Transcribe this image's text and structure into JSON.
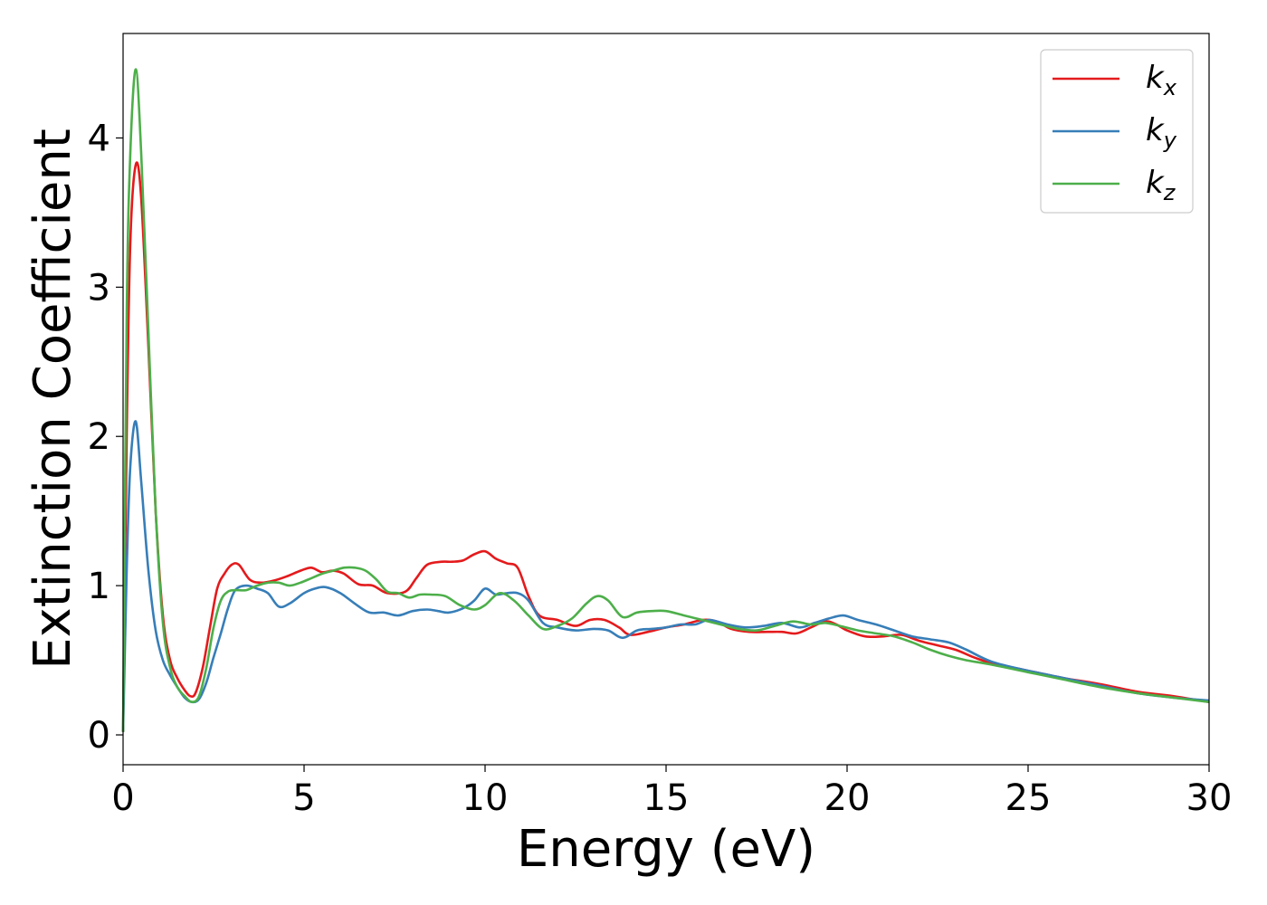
{
  "chart_data": {
    "type": "line",
    "xlabel": "Energy (eV)",
    "ylabel": "Extinction Coefficient",
    "xlim": [
      0,
      30
    ],
    "ylim": [
      -0.2,
      4.7
    ],
    "xticks": [
      "0",
      "5",
      "10",
      "15",
      "20",
      "25",
      "30"
    ],
    "yticks": [
      "0",
      "1",
      "2",
      "3",
      "4"
    ],
    "grid": false,
    "legend_position": "top-right",
    "series": [
      {
        "name": "k",
        "sub": "x",
        "color": "#e41a1c",
        "x": [
          0,
          0.1,
          0.2,
          0.35,
          0.5,
          0.7,
          0.9,
          1.1,
          1.3,
          1.5,
          1.7,
          1.85,
          2.0,
          2.2,
          2.4,
          2.6,
          2.8,
          3.0,
          3.2,
          3.5,
          3.8,
          4.1,
          4.5,
          4.9,
          5.2,
          5.5,
          5.8,
          6.1,
          6.5,
          6.9,
          7.3,
          7.8,
          8.1,
          8.4,
          8.8,
          9.1,
          9.4,
          9.7,
          10.0,
          10.3,
          10.6,
          10.9,
          11.2,
          11.5,
          12.0,
          12.5,
          12.9,
          13.3,
          13.7,
          14.0,
          14.5,
          15.0,
          15.5,
          16.0,
          16.4,
          16.8,
          17.3,
          17.8,
          18.2,
          18.6,
          19.0,
          19.4,
          19.7,
          20.0,
          20.5,
          21.0,
          21.5,
          22.0,
          22.5,
          23.0,
          23.5,
          24.0,
          25.0,
          26.0,
          27.0,
          28.0,
          29.0,
          30.0
        ],
        "y": [
          0.02,
          2.0,
          3.3,
          3.82,
          3.6,
          2.6,
          1.5,
          0.8,
          0.5,
          0.38,
          0.3,
          0.26,
          0.28,
          0.45,
          0.72,
          0.98,
          1.08,
          1.14,
          1.14,
          1.04,
          1.02,
          1.03,
          1.06,
          1.1,
          1.12,
          1.09,
          1.1,
          1.08,
          1.01,
          1.0,
          0.95,
          0.96,
          1.05,
          1.14,
          1.16,
          1.16,
          1.17,
          1.21,
          1.23,
          1.18,
          1.15,
          1.12,
          0.93,
          0.8,
          0.77,
          0.73,
          0.77,
          0.77,
          0.72,
          0.67,
          0.69,
          0.72,
          0.74,
          0.77,
          0.76,
          0.71,
          0.69,
          0.69,
          0.69,
          0.68,
          0.72,
          0.76,
          0.74,
          0.7,
          0.66,
          0.66,
          0.67,
          0.63,
          0.6,
          0.57,
          0.52,
          0.48,
          0.43,
          0.38,
          0.34,
          0.29,
          0.26,
          0.22
        ]
      },
      {
        "name": "k",
        "sub": "y",
        "color": "#377eb8",
        "x": [
          0,
          0.1,
          0.2,
          0.35,
          0.5,
          0.7,
          0.9,
          1.1,
          1.3,
          1.5,
          1.7,
          1.9,
          2.1,
          2.3,
          2.5,
          2.7,
          2.9,
          3.1,
          3.4,
          3.7,
          4.0,
          4.3,
          4.6,
          5.0,
          5.3,
          5.6,
          6.0,
          6.4,
          6.8,
          7.2,
          7.6,
          8.0,
          8.4,
          8.7,
          9.0,
          9.4,
          9.7,
          10.0,
          10.3,
          10.6,
          10.9,
          11.2,
          11.6,
          12.0,
          12.5,
          13.0,
          13.4,
          13.8,
          14.2,
          14.6,
          15.0,
          15.4,
          15.8,
          16.2,
          16.7,
          17.2,
          17.7,
          18.2,
          18.7,
          19.1,
          19.5,
          19.9,
          20.3,
          20.8,
          21.3,
          21.8,
          22.3,
          22.8,
          23.3,
          24.0,
          25.0,
          26.0,
          27.0,
          28.0,
          29.0,
          30.0
        ],
        "y": [
          0.02,
          1.1,
          1.8,
          2.1,
          1.7,
          1.1,
          0.7,
          0.5,
          0.4,
          0.32,
          0.25,
          0.22,
          0.24,
          0.35,
          0.52,
          0.68,
          0.85,
          0.97,
          1.0,
          0.98,
          0.95,
          0.86,
          0.88,
          0.95,
          0.98,
          0.99,
          0.95,
          0.88,
          0.82,
          0.82,
          0.8,
          0.83,
          0.84,
          0.83,
          0.82,
          0.85,
          0.9,
          0.98,
          0.94,
          0.95,
          0.95,
          0.9,
          0.75,
          0.72,
          0.7,
          0.71,
          0.7,
          0.65,
          0.7,
          0.71,
          0.72,
          0.74,
          0.74,
          0.77,
          0.74,
          0.72,
          0.73,
          0.75,
          0.72,
          0.75,
          0.78,
          0.8,
          0.77,
          0.74,
          0.7,
          0.66,
          0.64,
          0.62,
          0.57,
          0.49,
          0.43,
          0.38,
          0.33,
          0.28,
          0.25,
          0.23
        ]
      },
      {
        "name": "k",
        "sub": "z",
        "color": "#4daf4a",
        "x": [
          0,
          0.1,
          0.2,
          0.35,
          0.5,
          0.7,
          0.9,
          1.1,
          1.3,
          1.5,
          1.7,
          1.9,
          2.1,
          2.3,
          2.5,
          2.7,
          2.9,
          3.1,
          3.4,
          3.7,
          4.0,
          4.3,
          4.6,
          4.9,
          5.2,
          5.5,
          5.8,
          6.1,
          6.4,
          6.7,
          7.0,
          7.3,
          7.6,
          7.9,
          8.2,
          8.5,
          8.9,
          9.3,
          9.7,
          10.0,
          10.4,
          10.8,
          11.2,
          11.6,
          12.0,
          12.4,
          12.8,
          13.1,
          13.4,
          13.8,
          14.2,
          14.6,
          15.0,
          15.5,
          16.0,
          16.5,
          17.0,
          17.5,
          18.0,
          18.5,
          19.0,
          19.4,
          19.8,
          20.3,
          20.8,
          21.3,
          21.8,
          22.3,
          22.8,
          23.3,
          24.0,
          25.0,
          26.0,
          27.0,
          28.0,
          29.0,
          30.0
        ],
        "y": [
          0.02,
          2.8,
          3.9,
          4.46,
          3.9,
          2.7,
          1.5,
          0.75,
          0.45,
          0.32,
          0.26,
          0.22,
          0.26,
          0.45,
          0.72,
          0.9,
          0.96,
          0.97,
          0.97,
          1.0,
          1.02,
          1.02,
          1.0,
          1.02,
          1.05,
          1.08,
          1.1,
          1.12,
          1.12,
          1.1,
          1.04,
          0.96,
          0.95,
          0.92,
          0.94,
          0.94,
          0.93,
          0.87,
          0.84,
          0.87,
          0.95,
          0.9,
          0.8,
          0.71,
          0.73,
          0.78,
          0.88,
          0.93,
          0.9,
          0.79,
          0.82,
          0.83,
          0.83,
          0.8,
          0.77,
          0.74,
          0.71,
          0.7,
          0.73,
          0.76,
          0.74,
          0.75,
          0.73,
          0.7,
          0.68,
          0.66,
          0.62,
          0.57,
          0.53,
          0.5,
          0.47,
          0.42,
          0.37,
          0.32,
          0.28,
          0.25,
          0.22
        ]
      }
    ]
  }
}
